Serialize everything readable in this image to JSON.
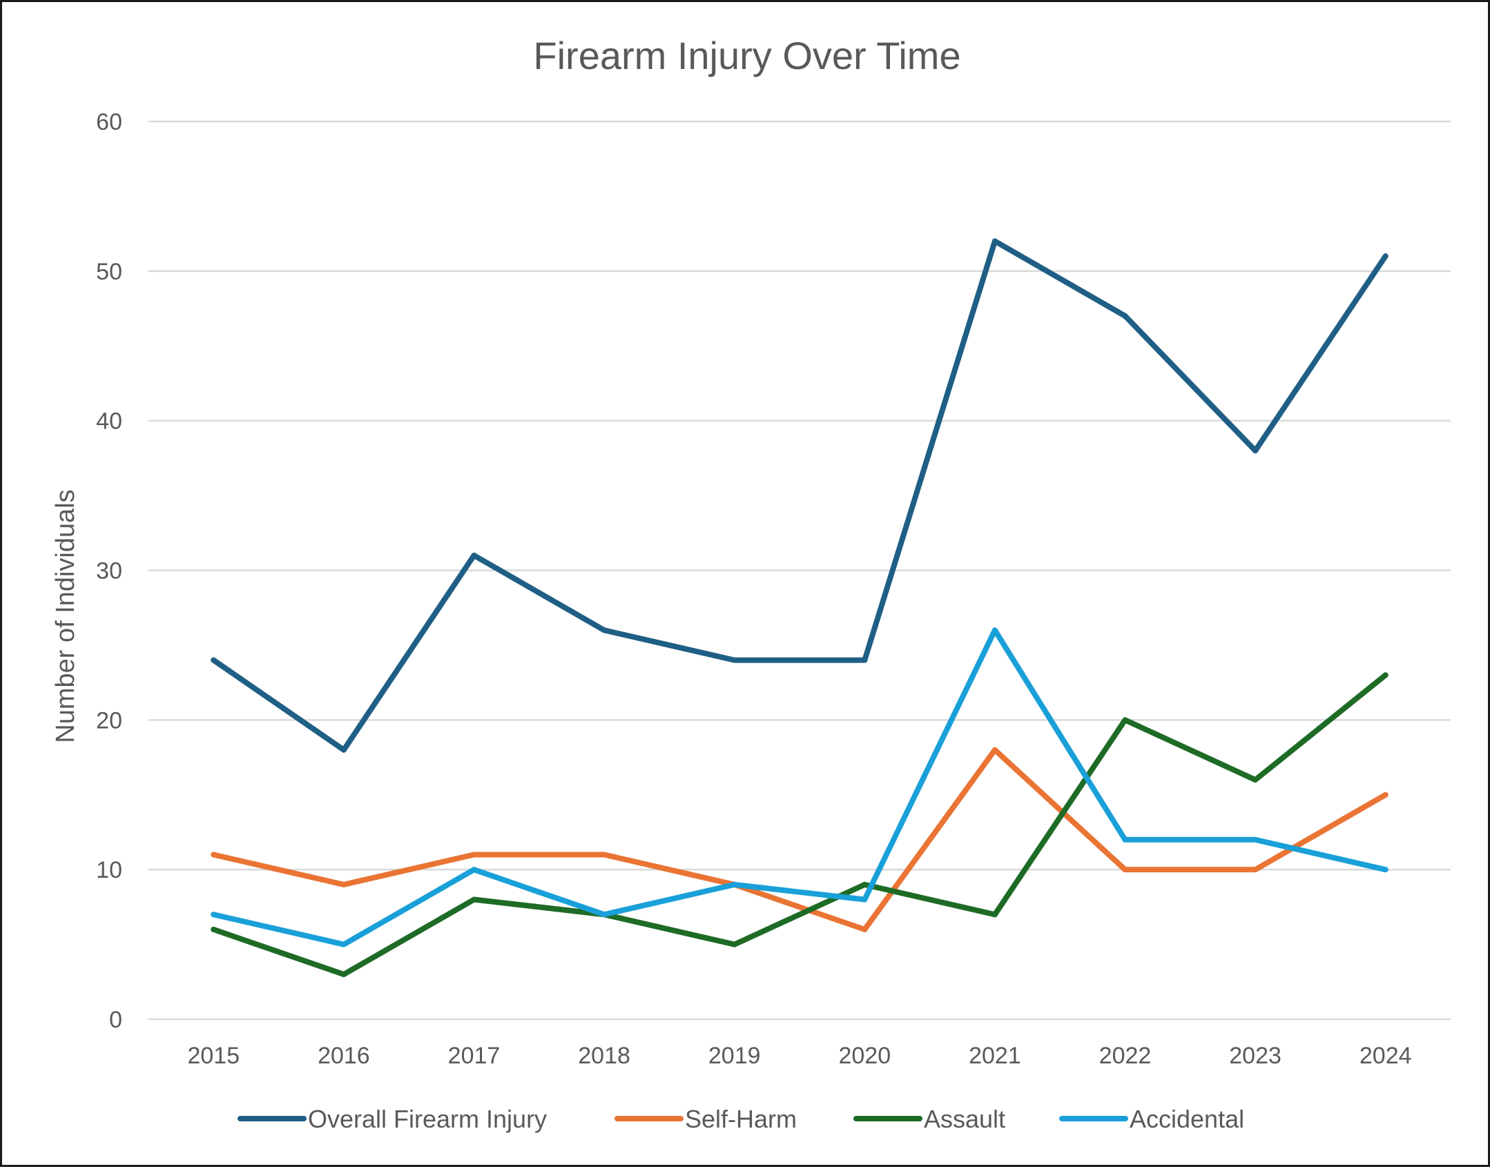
{
  "chart_data": {
    "type": "line",
    "title": "Firearm Injury Over Time",
    "xlabel": "",
    "ylabel": "Number of Individuals",
    "categories": [
      "2015",
      "2016",
      "2017",
      "2018",
      "2019",
      "2020",
      "2021",
      "2022",
      "2023",
      "2024"
    ],
    "ylim": [
      0,
      60
    ],
    "yticks": [
      0,
      10,
      20,
      30,
      40,
      50,
      60
    ],
    "grid": true,
    "legend_position": "bottom",
    "series": [
      {
        "name": "Overall Firearm Injury",
        "color": "#1f5f85",
        "values": [
          24,
          18,
          31,
          26,
          24,
          24,
          52,
          47,
          38,
          51
        ]
      },
      {
        "name": "Self-Harm",
        "color": "#ea7434",
        "values": [
          11,
          9,
          11,
          11,
          9,
          6,
          18,
          10,
          10,
          15
        ]
      },
      {
        "name": "Assault",
        "color": "#1e6b25",
        "values": [
          6,
          3,
          8,
          7,
          5,
          9,
          7,
          20,
          16,
          23
        ]
      },
      {
        "name": "Accidental",
        "color": "#1aa0d9",
        "values": [
          7,
          5,
          10,
          7,
          9,
          8,
          26,
          12,
          12,
          10
        ]
      }
    ]
  }
}
